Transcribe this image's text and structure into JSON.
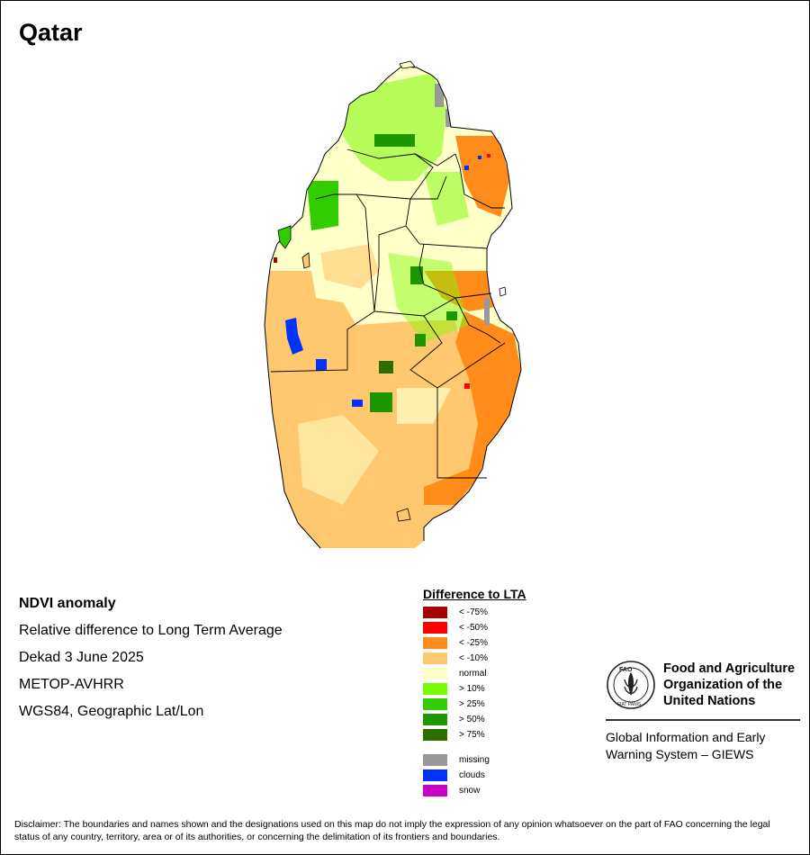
{
  "title": "Qatar",
  "info": {
    "heading": "NDVI anomaly",
    "line1": "Relative difference to Long Term Average",
    "line2": "Dekad 3 June 2025",
    "line3": "METOP-AVHRR",
    "line4": "WGS84, Geographic Lat/Lon"
  },
  "legend": {
    "title": "Difference to LTA",
    "items": [
      {
        "label": "< -75%",
        "color": "#a80000"
      },
      {
        "label": "< -50%",
        "color": "#ff0000"
      },
      {
        "label": "< -25%",
        "color": "#ff8c1a"
      },
      {
        "label": "< -10%",
        "color": "#ffc86e"
      },
      {
        "label": "normal",
        "color": "#ffffc8"
      },
      {
        "label": "> 10%",
        "color": "#7cfc00"
      },
      {
        "label": "> 25%",
        "color": "#32cd00"
      },
      {
        "label": "> 50%",
        "color": "#1e9600"
      },
      {
        "label": "> 75%",
        "color": "#2d6e00"
      }
    ],
    "extra": [
      {
        "label": "missing",
        "color": "#999999"
      },
      {
        "label": "clouds",
        "color": "#0032ff"
      },
      {
        "label": "snow",
        "color": "#c800c8"
      }
    ]
  },
  "org": {
    "name_line1": "Food and Agriculture",
    "name_line2": "Organization of the",
    "name_line3": "United Nations",
    "logo_text": "FAO",
    "logo_motto": "FIAT PANIS",
    "giews_line1": "Global Information and Early",
    "giews_line2": "Warning System – GIEWS"
  },
  "disclaimer": "Disclaimer: The boundaries and names shown and the designations used on this map do not imply the expression of any opinion whatsoever on the part of FAO concerning the legal status of any country, territory, area or of its authorities, or concerning the delimitation of its frontiers and boundaries."
}
